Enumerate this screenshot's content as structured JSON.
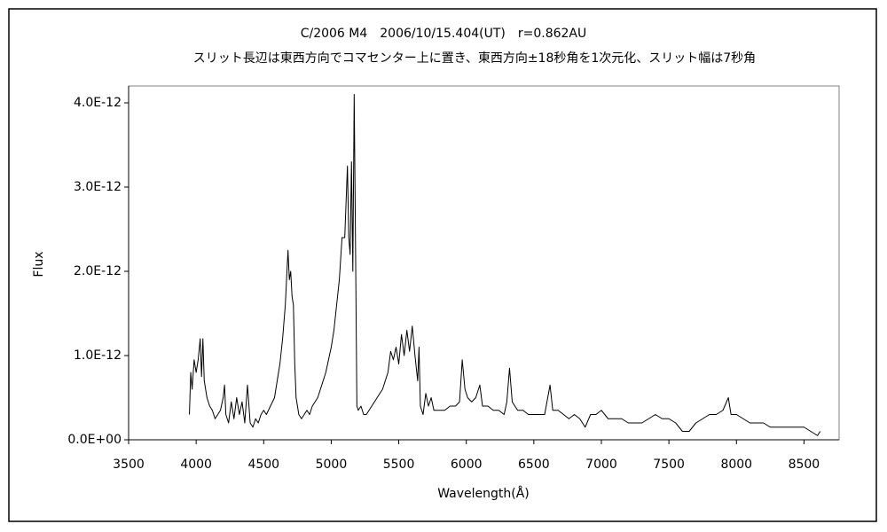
{
  "chart_data": {
    "type": "line",
    "title": "C/2006 M4　2006/10/15.404(UT)　r=0.862AU",
    "subtitle": "スリット長辺は東西方向でコマセンター上に置き、東西方向±18秒角を1次元化、スリット幅は7秒角",
    "x_label": "Wavelength(Å)",
    "y_label": "Flux",
    "xlim": [
      3500,
      8760
    ],
    "xticks": [
      3500,
      4000,
      4500,
      5000,
      5500,
      6000,
      6500,
      7000,
      7500,
      8000,
      8500
    ],
    "ylim": [
      0,
      4.2e-12
    ],
    "yticks": [
      {
        "value": 0,
        "label": "0.0E+00"
      },
      {
        "value": 1e-12,
        "label": "1.0E-12"
      },
      {
        "value": 2e-12,
        "label": "2.0E-12"
      },
      {
        "value": 3e-12,
        "label": "3.0E-12"
      },
      {
        "value": 4e-12,
        "label": "4.0E-12"
      }
    ],
    "grid": false,
    "color": "#000000",
    "x": [
      3950,
      3960,
      3970,
      3985,
      4000,
      4015,
      4030,
      4040,
      4050,
      4060,
      4080,
      4100,
      4120,
      4140,
      4160,
      4180,
      4200,
      4210,
      4220,
      4240,
      4260,
      4280,
      4300,
      4320,
      4340,
      4360,
      4380,
      4400,
      4420,
      4440,
      4460,
      4480,
      4500,
      4520,
      4550,
      4580,
      4600,
      4620,
      4640,
      4660,
      4680,
      4690,
      4700,
      4710,
      4720,
      4730,
      4740,
      4760,
      4780,
      4800,
      4820,
      4840,
      4860,
      4880,
      4900,
      4920,
      4940,
      4960,
      4980,
      5000,
      5020,
      5040,
      5060,
      5080,
      5100,
      5120,
      5130,
      5140,
      5150,
      5160,
      5170,
      5180,
      5190,
      5200,
      5220,
      5240,
      5260,
      5280,
      5300,
      5320,
      5340,
      5360,
      5380,
      5400,
      5420,
      5440,
      5460,
      5480,
      5500,
      5520,
      5540,
      5560,
      5580,
      5600,
      5620,
      5640,
      5650,
      5660,
      5680,
      5700,
      5720,
      5740,
      5760,
      5800,
      5840,
      5880,
      5920,
      5950,
      5970,
      5990,
      6010,
      6040,
      6070,
      6100,
      6120,
      6160,
      6200,
      6240,
      6280,
      6300,
      6320,
      6340,
      6380,
      6420,
      6460,
      6500,
      6540,
      6580,
      6620,
      6640,
      6680,
      6720,
      6760,
      6800,
      6840,
      6880,
      6920,
      6960,
      7000,
      7050,
      7100,
      7150,
      7200,
      7250,
      7300,
      7350,
      7400,
      7450,
      7500,
      7550,
      7600,
      7650,
      7700,
      7750,
      7800,
      7850,
      7900,
      7940,
      7960,
      8000,
      8050,
      8100,
      8150,
      8200,
      8250,
      8300,
      8350,
      8400,
      8450,
      8500,
      8550,
      8600,
      8620
    ],
    "values": [
      3e-13,
      8e-13,
      6e-13,
      9.5e-13,
      8e-13,
      9.5e-13,
      1.2e-12,
      7.5e-13,
      1.2e-12,
      7e-13,
      5e-13,
      4e-13,
      3.5e-13,
      2.5e-13,
      3e-13,
      3.5e-13,
      5e-13,
      6.5e-13,
      3e-13,
      2e-13,
      4.5e-13,
      2.5e-13,
      5e-13,
      3e-13,
      4.5e-13,
      2e-13,
      6.5e-13,
      2e-13,
      1.5e-13,
      2.5e-13,
      2e-13,
      3e-13,
      3.5e-13,
      3e-13,
      4e-13,
      5e-13,
      7e-13,
      9e-13,
      1.2e-12,
      1.6e-12,
      2.25e-12,
      1.9e-12,
      2e-12,
      1.7e-12,
      1.6e-12,
      9e-13,
      5e-13,
      3e-13,
      2.5e-13,
      3e-13,
      3.5e-13,
      3e-13,
      4e-13,
      4.5e-13,
      5e-13,
      6e-13,
      7e-13,
      8e-13,
      9.5e-13,
      1.1e-12,
      1.3e-12,
      1.6e-12,
      1.9e-12,
      2.4e-12,
      2.4e-12,
      3.25e-12,
      2.4e-12,
      2.2e-12,
      3.3e-12,
      2e-12,
      4.1e-12,
      2.3e-12,
      4e-13,
      3.5e-13,
      4e-13,
      3e-13,
      3e-13,
      3.5e-13,
      4e-13,
      4.5e-13,
      5e-13,
      5.5e-13,
      6e-13,
      7e-13,
      8e-13,
      1.05e-12,
      9.5e-13,
      1.1e-12,
      9e-13,
      1.25e-12,
      1e-12,
      1.3e-12,
      1.05e-12,
      1.35e-12,
      1e-12,
      7e-13,
      1.1e-12,
      4e-13,
      3e-13,
      5.5e-13,
      4e-13,
      5e-13,
      3.5e-13,
      3.5e-13,
      3.5e-13,
      4e-13,
      4e-13,
      4.5e-13,
      9.5e-13,
      6e-13,
      5e-13,
      4.5e-13,
      5e-13,
      6.5e-13,
      4e-13,
      4e-13,
      3.5e-13,
      3.5e-13,
      3e-13,
      4.5e-13,
      8.5e-13,
      4.5e-13,
      3.5e-13,
      3.5e-13,
      3e-13,
      3e-13,
      3e-13,
      3e-13,
      6.5e-13,
      3.5e-13,
      3.5e-13,
      3e-13,
      2.5e-13,
      3e-13,
      2.5e-13,
      1.5e-13,
      3e-13,
      3e-13,
      3.5e-13,
      2.5e-13,
      2.5e-13,
      2.5e-13,
      2e-13,
      2e-13,
      2e-13,
      2.5e-13,
      3e-13,
      2.5e-13,
      2.5e-13,
      2e-13,
      1e-13,
      1e-13,
      2e-13,
      2.5e-13,
      3e-13,
      3e-13,
      3.5e-13,
      5e-13,
      3e-13,
      3e-13,
      2.5e-13,
      2e-13,
      2e-13,
      2e-13,
      1.5e-13,
      1.5e-13,
      1.5e-13,
      1.5e-13,
      1.5e-13,
      1.5e-13,
      1e-13,
      5e-14,
      1e-13
    ]
  }
}
